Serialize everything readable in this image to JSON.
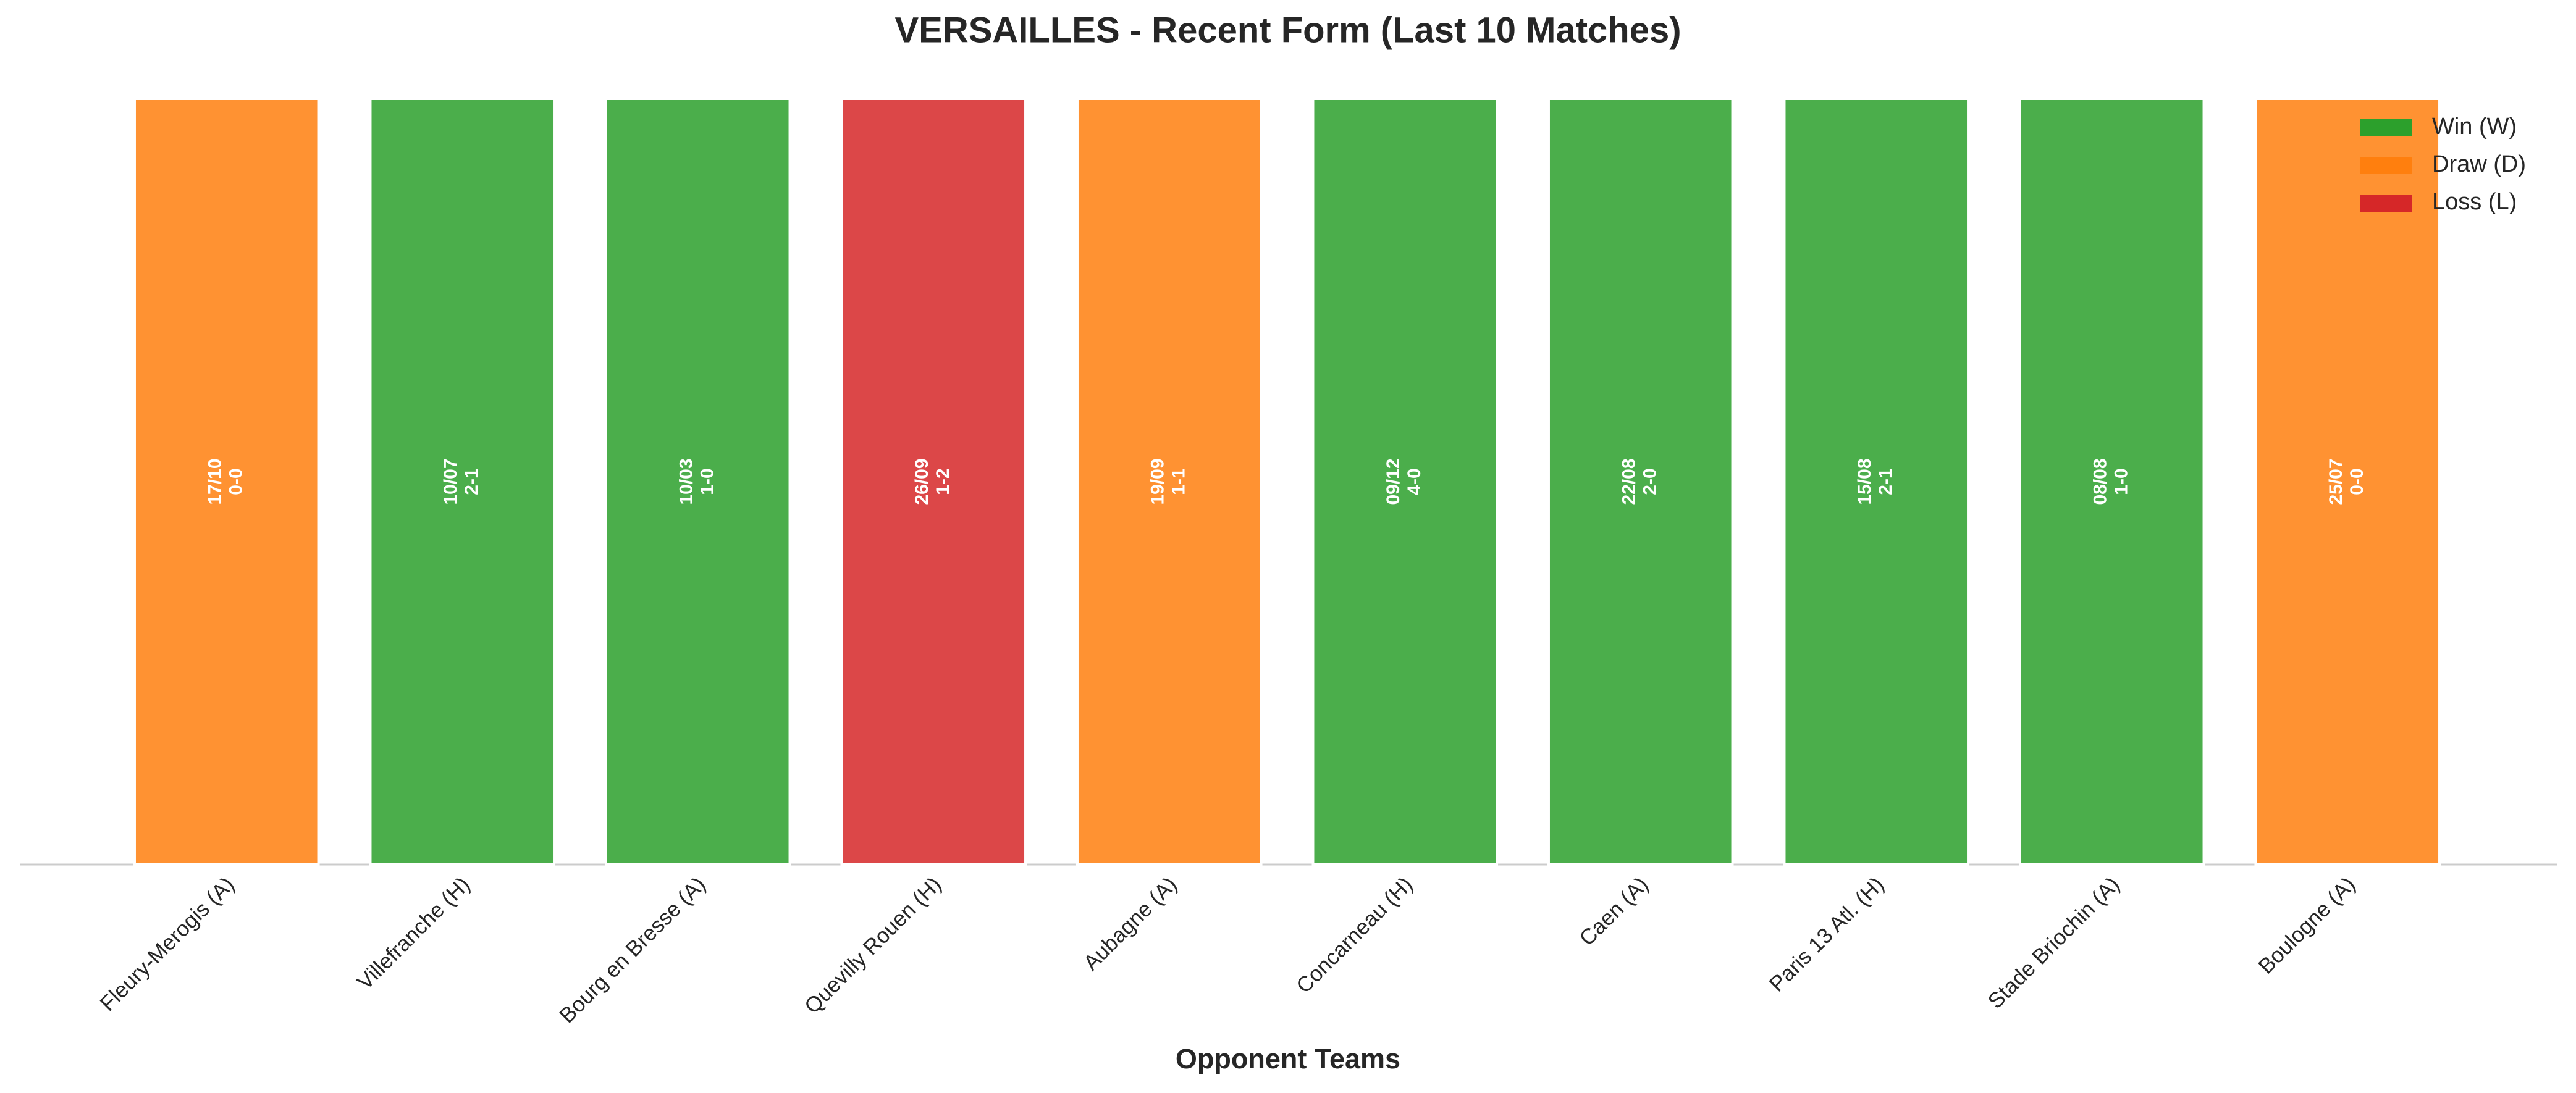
{
  "chart_data": {
    "type": "bar",
    "title": "VERSAILLES - Recent Form (Last 10 Matches)",
    "x_label": "Opponent Teams",
    "categories": [
      "Fleury-Merogis (A)",
      "Villefranche (H)",
      "Bourg en Bresse (A)",
      "Quevilly Rouen (H)",
      "Aubagne (A)",
      "Concarneau (H)",
      "Caen (A)",
      "Paris 13 Atl. (H)",
      "Stade Briochin (A)",
      "Boulogne (A)"
    ],
    "dates": [
      "17/10",
      "10/07",
      "10/03",
      "26/09",
      "19/09",
      "09/12",
      "22/08",
      "15/08",
      "08/08",
      "25/07"
    ],
    "scores": [
      "0-0",
      "2-1",
      "1-0",
      "1-2",
      "1-1",
      "4-0",
      "2-0",
      "2-1",
      "1-0",
      "0-0"
    ],
    "series": [
      {
        "name": "Win (W)",
        "color": "#2ca02c",
        "values": [
          null,
          1,
          1,
          null,
          null,
          1,
          1,
          1,
          1,
          null
        ]
      },
      {
        "name": "Draw (D)",
        "color": "#ff7f0e",
        "values": [
          1,
          null,
          null,
          null,
          1,
          null,
          null,
          null,
          null,
          1
        ]
      },
      {
        "name": "Loss (L)",
        "color": "#d62728",
        "values": [
          null,
          null,
          null,
          1,
          null,
          null,
          null,
          null,
          null,
          null
        ]
      }
    ],
    "ylim": [
      0,
      1
    ],
    "legend": "upper right"
  }
}
